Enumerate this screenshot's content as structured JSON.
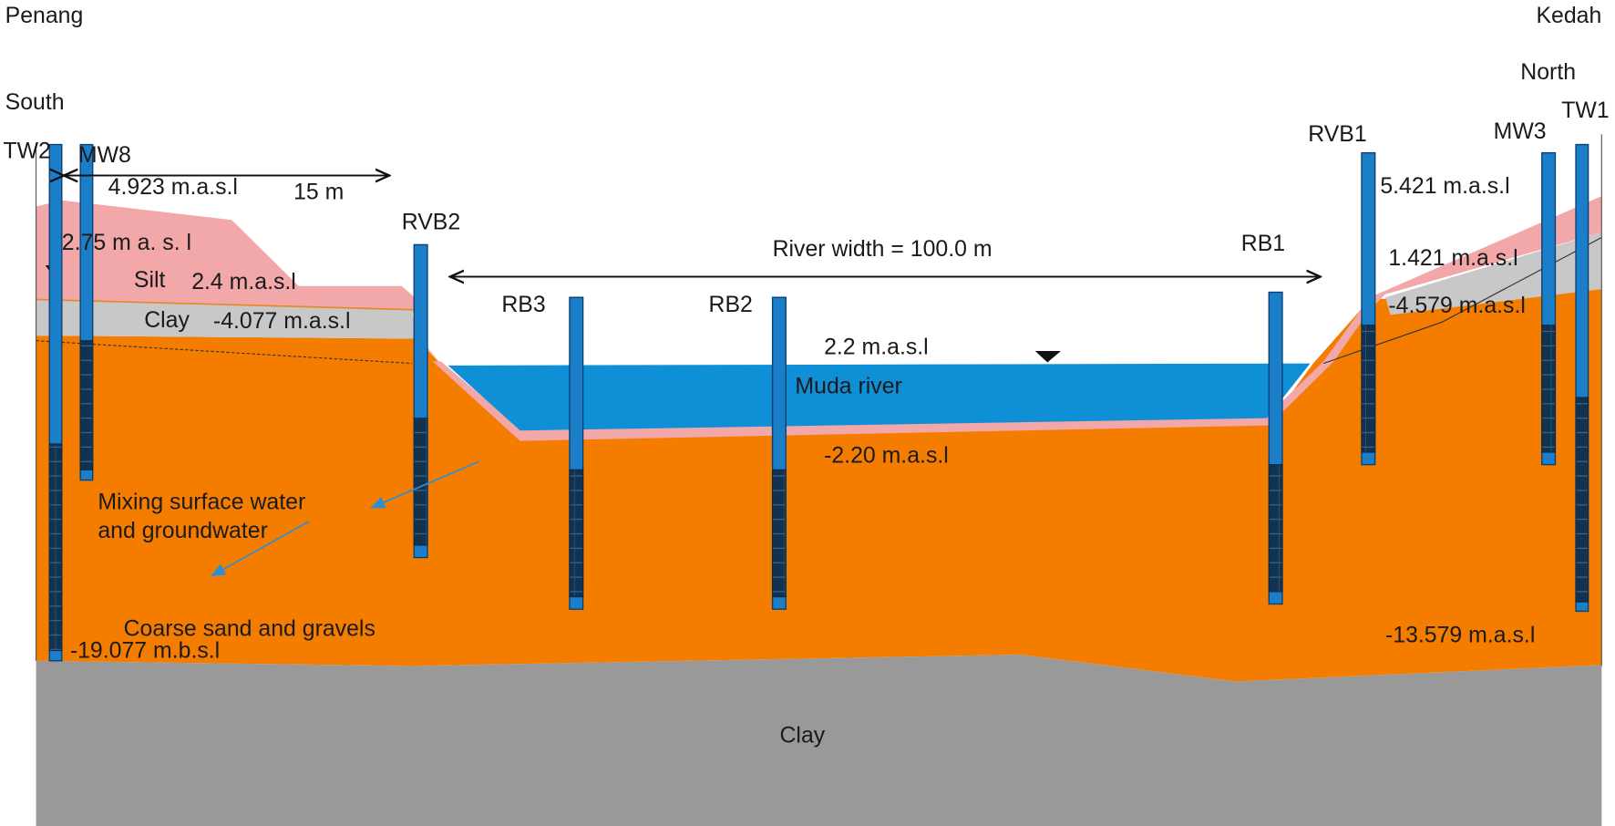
{
  "regions": {
    "south_bank": {
      "province": "Penang",
      "direction": "South"
    },
    "north_bank": {
      "province": "Kedah",
      "direction": "North"
    }
  },
  "wells": [
    "TW2",
    "MW8",
    "RVB2",
    "RB3",
    "RB2",
    "RB1",
    "RVB1",
    "MW3",
    "TW1"
  ],
  "elevations": [
    "4.923 m.a.s.l",
    "2.75 m a. s. l",
    "2.4 m.a.s.l",
    "-4.077  m.a.s.l",
    "-19.077  m.b.s.l",
    "2.2 m.a.s.l",
    "-2.20 m.a.s.l",
    "5.421 m.a.s.l",
    "1.421 m.a.s.l",
    "-4.579 m.a.s.l",
    "-13.579 m.a.s.l"
  ],
  "layers": {
    "silt": "Silt",
    "clay_upper": "Clay",
    "aquifer": "Coarse sand and  gravels",
    "clay_base": "Clay",
    "river": "Muda river"
  },
  "annotations": {
    "distance": "15 m",
    "river_width": "River width = 100.0 m",
    "mixing": [
      "Mixing surface water",
      "and groundwater"
    ]
  }
}
